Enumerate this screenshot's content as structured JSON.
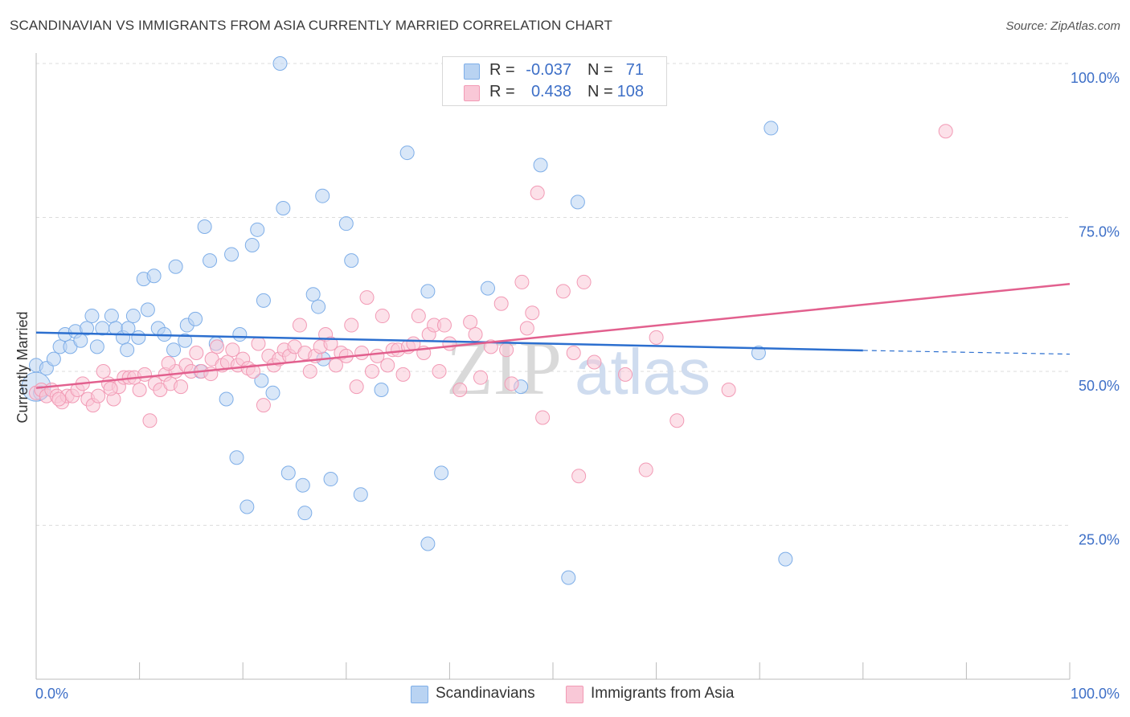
{
  "header": {
    "title": "SCANDINAVIAN VS IMMIGRANTS FROM ASIA CURRENTLY MARRIED CORRELATION CHART",
    "source": "Source: ZipAtlas.com"
  },
  "watermark": {
    "zip": "ZIP",
    "atlas": "atlas"
  },
  "legend": {
    "rows": [
      {
        "r_label": "R =",
        "r_value": "-0.037",
        "n_label": "N =",
        "n_value": "71",
        "color": "#a9c8f0"
      },
      {
        "r_label": "R =",
        "r_value": "0.438",
        "n_label": "N =",
        "n_value": "108",
        "color": "#f7b8cb"
      }
    ]
  },
  "bottom_legend": {
    "scandinavians": "Scandinavians",
    "asia": "Immigrants from Asia"
  },
  "chart_data": {
    "type": "scatter",
    "title": "SCANDINAVIAN VS IMMIGRANTS FROM ASIA CURRENTLY MARRIED CORRELATION CHART",
    "xlabel": "",
    "ylabel": "Currently Married",
    "xlim": [
      0,
      100
    ],
    "ylim": [
      0,
      100
    ],
    "x_tick_labels": [
      "0.0%",
      "100.0%"
    ],
    "y_tick_labels": [
      "100.0%",
      "75.0%",
      "50.0%",
      "25.0%"
    ],
    "y_ticks": [
      100,
      75,
      50,
      25
    ],
    "grid": true,
    "legend_position": "top-center",
    "series": [
      {
        "name": "Scandinavians",
        "color": "#7eaee8",
        "fill": "#b9d3f2",
        "trend": {
          "x0": 0,
          "y0": 56.3,
          "x1": 80,
          "y1": 53.4,
          "dash_to": 100,
          "dash_y": 52.8,
          "color": "#2c6fcf"
        },
        "points": [
          [
            0,
            47.5
          ],
          [
            0,
            51
          ],
          [
            1,
            50.5
          ],
          [
            1.7,
            52
          ],
          [
            2.3,
            54
          ],
          [
            2.8,
            56
          ],
          [
            3.3,
            54
          ],
          [
            3.8,
            56.5
          ],
          [
            4.3,
            55
          ],
          [
            4.9,
            57
          ],
          [
            5.4,
            59
          ],
          [
            5.9,
            54
          ],
          [
            6.4,
            57
          ],
          [
            7.3,
            59
          ],
          [
            7.7,
            57
          ],
          [
            8.4,
            55.5
          ],
          [
            8.8,
            53.5
          ],
          [
            8.9,
            57
          ],
          [
            9.4,
            59
          ],
          [
            9.9,
            55.5
          ],
          [
            10.4,
            65
          ],
          [
            10.8,
            60
          ],
          [
            11.4,
            65.5
          ],
          [
            11.8,
            57
          ],
          [
            12.4,
            56
          ],
          [
            13.3,
            53.5
          ],
          [
            13.5,
            67
          ],
          [
            14.4,
            55
          ],
          [
            14.6,
            57.5
          ],
          [
            15.4,
            58.5
          ],
          [
            15.9,
            50
          ],
          [
            16.3,
            73.5
          ],
          [
            16.8,
            68
          ],
          [
            17.4,
            54.5
          ],
          [
            18.4,
            45.5
          ],
          [
            18.9,
            69
          ],
          [
            19.4,
            36
          ],
          [
            19.7,
            56
          ],
          [
            20.4,
            28
          ],
          [
            20.9,
            70.5
          ],
          [
            21.4,
            73
          ],
          [
            21.8,
            48.5
          ],
          [
            22.0,
            61.5
          ],
          [
            22.9,
            46.5
          ],
          [
            23.6,
            100
          ],
          [
            23.9,
            76.5
          ],
          [
            24.4,
            33.5
          ],
          [
            25.8,
            31.5
          ],
          [
            26.0,
            27
          ],
          [
            26.8,
            62.5
          ],
          [
            27.3,
            60.5
          ],
          [
            27.7,
            78.5
          ],
          [
            27.8,
            52
          ],
          [
            28.5,
            32.5
          ],
          [
            30.0,
            74
          ],
          [
            30.5,
            68
          ],
          [
            31.4,
            30
          ],
          [
            33.4,
            47
          ],
          [
            35.9,
            85.5
          ],
          [
            37.9,
            63
          ],
          [
            37.9,
            22
          ],
          [
            39.2,
            33.5
          ],
          [
            43.7,
            63.5
          ],
          [
            46.9,
            47.5
          ],
          [
            48.8,
            83.5
          ],
          [
            51.5,
            16.5
          ],
          [
            52.4,
            77.5
          ],
          [
            69.9,
            53
          ],
          [
            71.1,
            89.5
          ],
          [
            72.5,
            19.5
          ],
          [
            0.4,
            46.5
          ]
        ]
      },
      {
        "name": "Immigrants from Asia",
        "color": "#f29ab5",
        "fill": "#f9c8d7",
        "trend": {
          "x0": 0,
          "y0": 47.3,
          "x1": 100,
          "y1": 64.2,
          "color": "#e2608e"
        },
        "points": [
          [
            0,
            46.5
          ],
          [
            0.5,
            47
          ],
          [
            1,
            46
          ],
          [
            1.5,
            47
          ],
          [
            2,
            46
          ],
          [
            2.5,
            45
          ],
          [
            3,
            46
          ],
          [
            3.5,
            46
          ],
          [
            4,
            47
          ],
          [
            4.5,
            48
          ],
          [
            5,
            45.5
          ],
          [
            5.5,
            44.5
          ],
          [
            6,
            46
          ],
          [
            6.5,
            50
          ],
          [
            7,
            48
          ],
          [
            7.5,
            45.5
          ],
          [
            8,
            47.5
          ],
          [
            8.5,
            49
          ],
          [
            9,
            49
          ],
          [
            9.5,
            49
          ],
          [
            10,
            47
          ],
          [
            10.5,
            49.5
          ],
          [
            11,
            42
          ],
          [
            11.5,
            48
          ],
          [
            12,
            47
          ],
          [
            12.5,
            49.5
          ],
          [
            13,
            48
          ],
          [
            13.5,
            50
          ],
          [
            14,
            47.5
          ],
          [
            14.5,
            51
          ],
          [
            15,
            50
          ],
          [
            15.5,
            53
          ],
          [
            16,
            50
          ],
          [
            17,
            52
          ],
          [
            17.5,
            54
          ],
          [
            18,
            51
          ],
          [
            18.5,
            51.5
          ],
          [
            19,
            53.5
          ],
          [
            19.5,
            51
          ],
          [
            20,
            52
          ],
          [
            20.5,
            50.5
          ],
          [
            21,
            50
          ],
          [
            21.5,
            54.5
          ],
          [
            22,
            44.5
          ],
          [
            22.5,
            52.5
          ],
          [
            23,
            51
          ],
          [
            23.5,
            52
          ],
          [
            24,
            53.5
          ],
          [
            24.5,
            52.5
          ],
          [
            25,
            54
          ],
          [
            25.5,
            57.5
          ],
          [
            26,
            53
          ],
          [
            26.5,
            50
          ],
          [
            27,
            52.5
          ],
          [
            27.5,
            54
          ],
          [
            28,
            56
          ],
          [
            28.5,
            54.5
          ],
          [
            29,
            51
          ],
          [
            29.5,
            53
          ],
          [
            30,
            52.5
          ],
          [
            30.5,
            57.5
          ],
          [
            31,
            47.5
          ],
          [
            31.5,
            53
          ],
          [
            32,
            62
          ],
          [
            32.5,
            50
          ],
          [
            33,
            52.5
          ],
          [
            33.5,
            59
          ],
          [
            34,
            51
          ],
          [
            34.5,
            53.5
          ],
          [
            35,
            53.5
          ],
          [
            35.5,
            49.5
          ],
          [
            36,
            54
          ],
          [
            36.5,
            54.5
          ],
          [
            37,
            59
          ],
          [
            37.5,
            53
          ],
          [
            38,
            56
          ],
          [
            38.5,
            57.5
          ],
          [
            39,
            50
          ],
          [
            39.5,
            57.5
          ],
          [
            40,
            54.5
          ],
          [
            41,
            47
          ],
          [
            42,
            58
          ],
          [
            42.5,
            56
          ],
          [
            43,
            49
          ],
          [
            44,
            54
          ],
          [
            45,
            61
          ],
          [
            45.5,
            53.5
          ],
          [
            46,
            48
          ],
          [
            47,
            64.5
          ],
          [
            47.5,
            57
          ],
          [
            48,
            59.5
          ],
          [
            48.5,
            79
          ],
          [
            49,
            42.5
          ],
          [
            51,
            63
          ],
          [
            52,
            53
          ],
          [
            52.5,
            33
          ],
          [
            53,
            64.5
          ],
          [
            54,
            51.5
          ],
          [
            57,
            49.5
          ],
          [
            59,
            34
          ],
          [
            60,
            55.5
          ],
          [
            62,
            42
          ],
          [
            67,
            47
          ],
          [
            88,
            89
          ],
          [
            2.2,
            45.5
          ],
          [
            7.2,
            47.2
          ],
          [
            12.8,
            51.3
          ],
          [
            16.9,
            49.6
          ]
        ]
      }
    ]
  }
}
